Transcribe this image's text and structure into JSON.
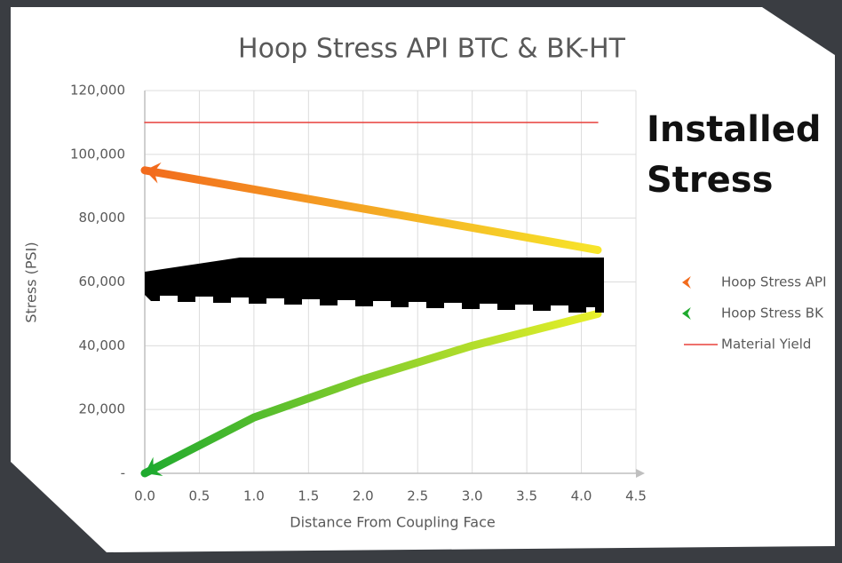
{
  "chart_data": {
    "type": "line",
    "title": "Hoop Stress API BTC & BK-HT",
    "x_label": "Distance From Coupling Face",
    "y_label": "Stress (PSI)",
    "annotation": [
      "Installed",
      "Stress"
    ],
    "x": [
      0,
      1,
      2,
      3,
      4.15
    ],
    "series": [
      {
        "name": "Hoop Stress API",
        "color": "#f26b1d",
        "gradient_to": "#f7e52a",
        "arrow_start": true,
        "values": [
          95000,
          89000,
          83000,
          77000,
          70000
        ]
      },
      {
        "name": "Hoop Stress BK",
        "color": "#1faa2e",
        "gradient_to": "#e8f02a",
        "arrow_start": true,
        "values": [
          0,
          17500,
          29500,
          40000,
          50000
        ]
      },
      {
        "name": "Material Yield",
        "color": "#e8413c",
        "arrow_start": false,
        "values": [
          110000,
          110000,
          110000,
          110000,
          110000
        ]
      }
    ],
    "xlim": [
      0,
      4.5
    ],
    "xticks": [
      {
        "value": 0,
        "label": "0.0"
      },
      0.5,
      {
        "value": 1,
        "label": "1.0"
      },
      1.5,
      {
        "value": 2,
        "label": "2.0"
      },
      2.5,
      {
        "value": 3,
        "label": "3.0"
      },
      3.5,
      {
        "value": 4,
        "label": "4.0"
      },
      4.5
    ],
    "ylim": [
      0,
      120000
    ],
    "yticks": [
      {
        "value": 0,
        "label": "-"
      },
      {
        "value": 20000,
        "label": "20,000"
      },
      {
        "value": 40000,
        "label": "40,000"
      },
      {
        "value": 60000,
        "label": "60,000"
      },
      {
        "value": 80000,
        "label": "80,000"
      },
      {
        "value": 100000,
        "label": "100,000"
      },
      {
        "value": 120000,
        "label": "120,000"
      }
    ],
    "grid": true,
    "legend": "right"
  }
}
